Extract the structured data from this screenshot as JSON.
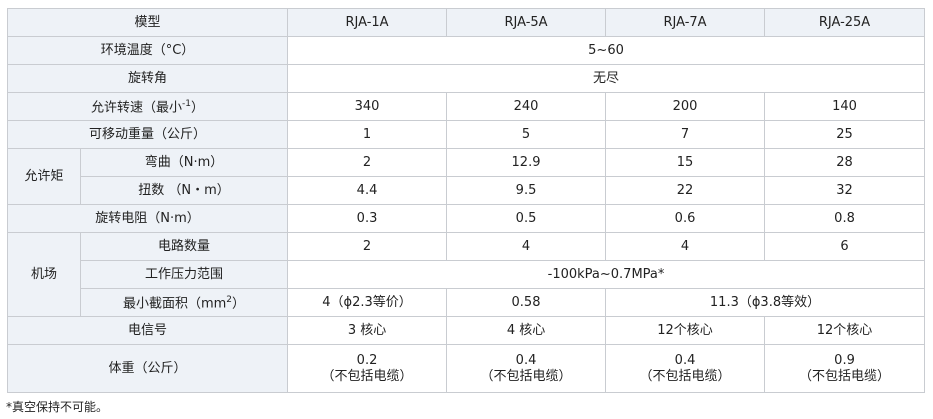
{
  "header": {
    "label": "模型",
    "models": [
      "RJA-1A",
      "RJA-5A",
      "RJA-7A",
      "RJA-25A"
    ]
  },
  "rows": {
    "ambient_temp": {
      "label": "环境温度（°C）",
      "value": "5~60"
    },
    "rotation_angle": {
      "label": "旋转角",
      "value": "无尽"
    },
    "speed": {
      "label": "允许转速（最小",
      "sup": "-1",
      "label_end": "）",
      "values": [
        "340",
        "240",
        "200",
        "140"
      ]
    },
    "payload": {
      "label": "可移动重量（公斤）",
      "values": [
        "1",
        "5",
        "7",
        "25"
      ]
    },
    "allowable_moment": {
      "group": "允许矩",
      "bending": {
        "label": "弯曲（N·m）",
        "values": [
          "2",
          "12.9",
          "15",
          "28"
        ]
      },
      "torsion": {
        "label": "扭数 （N・m）",
        "values": [
          "4.4",
          "9.5",
          "22",
          "32"
        ]
      }
    },
    "rotation_resistance": {
      "label": "旋转电阻（N·m）",
      "values": [
        "0.3",
        "0.5",
        "0.6",
        "0.8"
      ]
    },
    "air": {
      "group": "机场",
      "circuits": {
        "label": "电路数量",
        "values": [
          "2",
          "4",
          "4",
          "6"
        ]
      },
      "pressure": {
        "label": "工作压力范围",
        "value": "-100kPa~0.7MPa*"
      },
      "min_area": {
        "label": "最小截面积（mm",
        "sup": "2",
        "label_end": "）",
        "values": [
          "4（ϕ2.3等价）",
          "0.58",
          "11.3（ϕ3.8等效）"
        ]
      }
    },
    "signal": {
      "label": "电信号",
      "values": [
        "3 核心",
        "4 核心",
        "12个核心",
        "12个核心"
      ]
    },
    "weight": {
      "label": "体重（公斤）",
      "values": [
        "0.2",
        "0.4",
        "0.4",
        "0.9"
      ],
      "note": "（不包括电缆）"
    }
  },
  "footnote": "*真空保持不可能。"
}
